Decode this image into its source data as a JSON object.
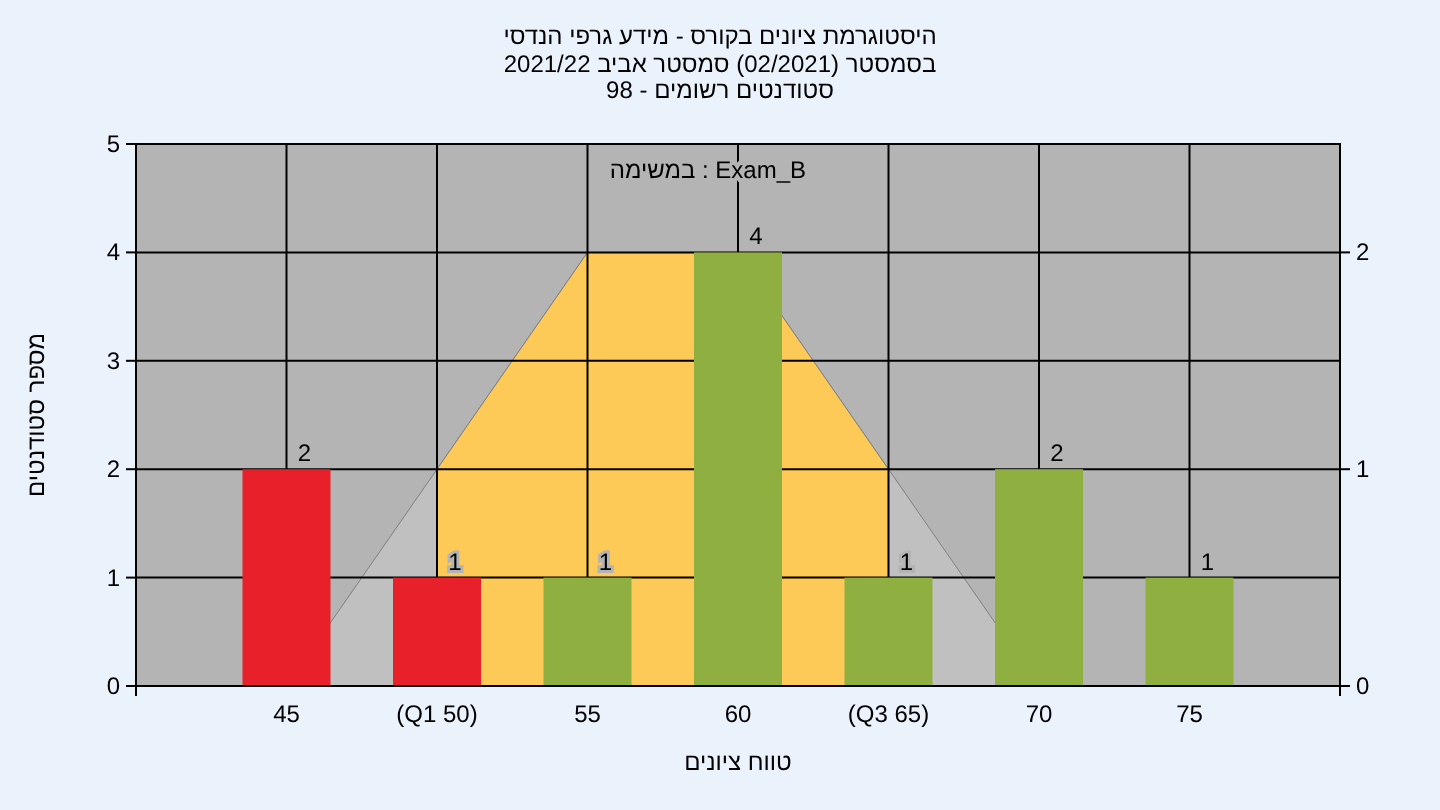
{
  "chart_data": {
    "type": "bar",
    "title": "היסטוגרמת ציונים בקורס - מידע גרפי הנדסי",
    "subtitle": "בסמסטר  (02/2021)  סמסטר אביב 2021/22\nסטודנטים רשומים - 98",
    "xlabel": "טווח ציונים",
    "ylabel": "מספר סטודנטים",
    "annotations": [
      "Exam_B : במשימה"
    ],
    "categories": [
      "45",
      "(Q1 50)",
      "55",
      "60",
      "(Q3 65)",
      "70",
      "75"
    ],
    "series": [
      {
        "type": "area",
        "axis": "y2",
        "color": "#c0c0c0",
        "values": [
          0,
          1,
          2,
          2,
          1,
          0,
          null
        ]
      },
      {
        "type": "area",
        "axis": "y2",
        "color": "#fdc957",
        "values": [
          null,
          1,
          2,
          2,
          1,
          null,
          null
        ]
      },
      {
        "colors": [
          "#e8202a",
          "#e8202a",
          "#8fb040",
          "#8fb040",
          "#8fb040",
          "#8fb040",
          "#8fb040"
        ],
        "values": [
          2,
          1,
          1,
          4,
          1,
          2,
          1
        ],
        "value_labels": [
          "2",
          "1",
          "1",
          "4",
          "1",
          "2",
          "1"
        ]
      }
    ],
    "ylim": [
      0,
      5
    ],
    "yticks": [
      0,
      1,
      2,
      3,
      4,
      5
    ],
    "y2lim": [
      0,
      2.5
    ],
    "y2ticks": [
      0,
      1,
      2
    ],
    "grid": true
  }
}
